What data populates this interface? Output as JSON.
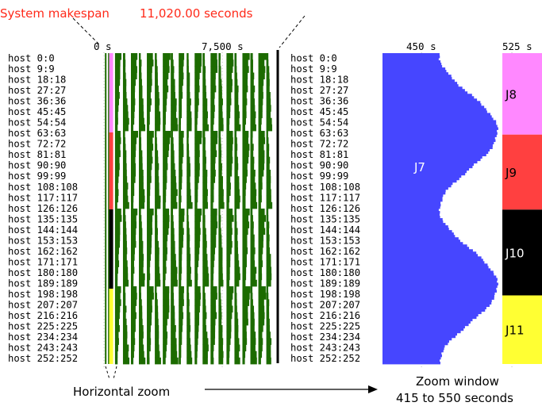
{
  "header": {
    "makespan_label": "System makespan",
    "makespan_value": "11,020.00 seconds"
  },
  "annotations": {
    "horizontal_zoom": "Horizontal zoom",
    "zoom_window_line1": "Zoom window",
    "zoom_window_line2": "415 to 550 seconds"
  },
  "colors": {
    "green": "#1c6b00",
    "blue": "#4646ff",
    "pink": "#ff88ff",
    "red_job": "#ff4040",
    "black": "#000000",
    "yellow": "#ffff33",
    "accent_red": "#ff2a1a"
  },
  "chart_data": [
    {
      "type": "bar",
      "panel": "full-schedule",
      "x_ticks": [
        "0 s",
        "7,500 s"
      ],
      "tick_values": [
        0,
        7500
      ],
      "xlim": [
        0,
        11020
      ],
      "hosts": [
        "host 0:0",
        "host 9:9",
        "host 18:18",
        "host 27:27",
        "host 36:36",
        "host 45:45",
        "host 54:54",
        "host 63:63",
        "host 72:72",
        "host 81:81",
        "host 90:90",
        "host 99:99",
        "host 108:108",
        "host 117:117",
        "host 126:126",
        "host 135:135",
        "host 144:144",
        "host 153:153",
        "host 162:162",
        "host 171:171",
        "host 180:180",
        "host 189:189",
        "host 198:198",
        "host 207:207",
        "host 216:216",
        "host 225:225",
        "host 234:234",
        "host 243:243",
        "host 252:252"
      ],
      "makespan": 11020
    },
    {
      "type": "bar",
      "panel": "zoom-window",
      "x_ticks": [
        "450 s",
        "525 s"
      ],
      "tick_values": [
        450,
        525
      ],
      "xlim": [
        415,
        550
      ],
      "hosts": [
        "host 0:0",
        "host 9:9",
        "host 18:18",
        "host 27:27",
        "host 36:36",
        "host 45:45",
        "host 54:54",
        "host 63:63",
        "host 72:72",
        "host 81:81",
        "host 90:90",
        "host 99:99",
        "host 108:108",
        "host 117:117",
        "host 126:126",
        "host 135:135",
        "host 144:144",
        "host 153:153",
        "host 162:162",
        "host 171:171",
        "host 180:180",
        "host 189:189",
        "host 198:198",
        "host 207:207",
        "host 216:216",
        "host 225:225",
        "host 234:234",
        "host 243:243",
        "host 252:252"
      ],
      "jobs": [
        {
          "name": "J7",
          "host_range": [
            "host 0:0",
            "host 252:252"
          ],
          "end_seconds_approx": [
            465,
            513
          ]
        },
        {
          "name": "J8",
          "host_range": [
            "host 0:0",
            "host 63:63"
          ],
          "start_seconds": 525
        },
        {
          "name": "J9",
          "host_range": [
            "host 63:63",
            "host 126:126"
          ],
          "start_seconds": 525
        },
        {
          "name": "J10",
          "host_range": [
            "host 126:126",
            "host 198:198"
          ],
          "start_seconds": 525
        },
        {
          "name": "J11",
          "host_range": [
            "host 198:198",
            "host 252:252"
          ],
          "start_seconds": 525
        }
      ]
    }
  ]
}
